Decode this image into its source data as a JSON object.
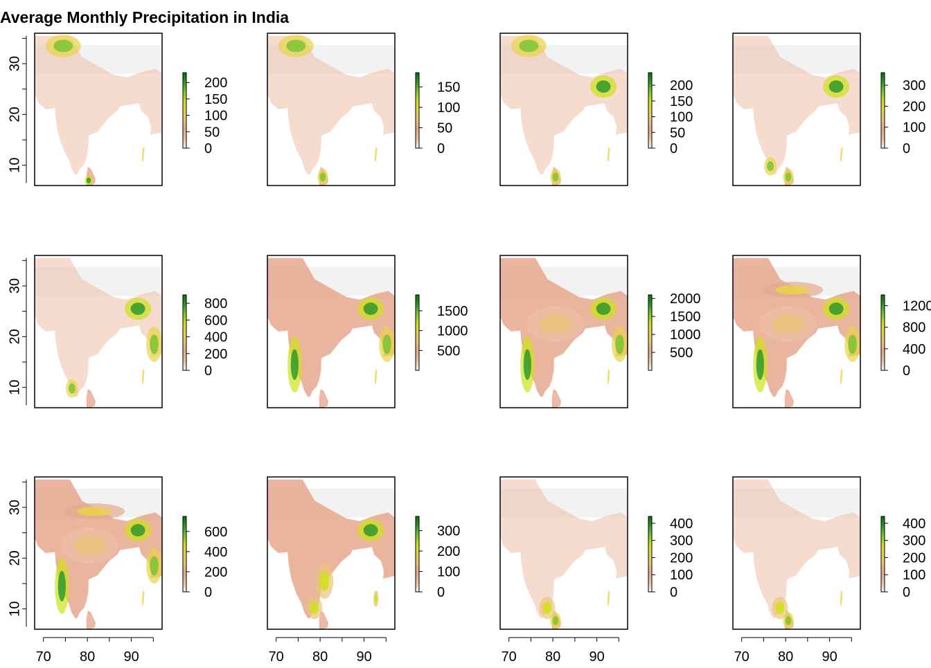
{
  "figure": {
    "title": "Average Monthly Precipitation in India"
  },
  "colors": {
    "background": "#ffffff",
    "na_fill": "#f2f2f2",
    "ramp": [
      "#f2f2f2",
      "#eebfa5",
      "#e6a88e",
      "#ebc47a",
      "#e8d44a",
      "#cfe01a",
      "#7ec42f",
      "#2e9a2a",
      "#0c6e0c"
    ]
  },
  "chart_data": [
    {
      "type": "heatmap",
      "panel": 1,
      "xlim": [
        68,
        97
      ],
      "ylim": [
        6,
        36
      ],
      "x_ticks": [
        70,
        80,
        90
      ],
      "y_ticks": [
        10,
        20,
        30
      ],
      "show_x_axis": false,
      "show_y_axis": true,
      "zlim": [
        0,
        230
      ],
      "legend_ticks": [
        0,
        50,
        100,
        150,
        200
      ],
      "wet_regions": [
        "north-west himalaya",
        "sri lanka south-west"
      ]
    },
    {
      "type": "heatmap",
      "panel": 2,
      "xlim": [
        68,
        97
      ],
      "ylim": [
        6,
        36
      ],
      "x_ticks": [
        70,
        80,
        90
      ],
      "y_ticks": [
        10,
        20,
        30
      ],
      "show_x_axis": false,
      "show_y_axis": false,
      "zlim": [
        0,
        185
      ],
      "legend_ticks": [
        0,
        50,
        100,
        150
      ],
      "wet_regions": [
        "north-west himalaya",
        "sri lanka"
      ]
    },
    {
      "type": "heatmap",
      "panel": 3,
      "xlim": [
        68,
        97
      ],
      "ylim": [
        6,
        36
      ],
      "x_ticks": [
        70,
        80,
        90
      ],
      "y_ticks": [
        10,
        20,
        30
      ],
      "show_x_axis": false,
      "show_y_axis": false,
      "zlim": [
        0,
        240
      ],
      "legend_ticks": [
        0,
        50,
        100,
        150,
        200
      ],
      "wet_regions": [
        "north-west himalaya",
        "north-east",
        "sri lanka"
      ]
    },
    {
      "type": "heatmap",
      "panel": 4,
      "xlim": [
        68,
        97
      ],
      "ylim": [
        6,
        36
      ],
      "x_ticks": [
        70,
        80,
        90
      ],
      "y_ticks": [
        10,
        20,
        30
      ],
      "show_x_axis": false,
      "show_y_axis": false,
      "zlim": [
        0,
        360
      ],
      "legend_ticks": [
        0,
        100,
        200,
        300
      ],
      "wet_regions": [
        "north-east",
        "kerala",
        "sri lanka"
      ]
    },
    {
      "type": "heatmap",
      "panel": 5,
      "xlim": [
        68,
        97
      ],
      "ylim": [
        6,
        36
      ],
      "x_ticks": [
        70,
        80,
        90
      ],
      "y_ticks": [
        10,
        20,
        30
      ],
      "show_x_axis": false,
      "show_y_axis": true,
      "zlim": [
        0,
        900
      ],
      "legend_ticks": [
        0,
        200,
        400,
        600,
        800
      ],
      "wet_regions": [
        "north-east",
        "myanmar coast",
        "kerala"
      ]
    },
    {
      "type": "heatmap",
      "panel": 6,
      "xlim": [
        68,
        97
      ],
      "ylim": [
        6,
        36
      ],
      "x_ticks": [
        70,
        80,
        90
      ],
      "y_ticks": [
        10,
        20,
        30
      ],
      "show_x_axis": false,
      "show_y_axis": false,
      "zlim": [
        0,
        1900
      ],
      "legend_ticks": [
        500,
        1000,
        1500
      ],
      "wet_regions": [
        "western ghats",
        "north-east",
        "myanmar coast"
      ]
    },
    {
      "type": "heatmap",
      "panel": 7,
      "xlim": [
        68,
        97
      ],
      "ylim": [
        6,
        36
      ],
      "x_ticks": [
        70,
        80,
        90
      ],
      "y_ticks": [
        10,
        20,
        30
      ],
      "show_x_axis": false,
      "show_y_axis": false,
      "zlim": [
        0,
        2100
      ],
      "legend_ticks": [
        500,
        1000,
        1500,
        2000
      ],
      "wet_regions": [
        "western ghats",
        "north-east",
        "myanmar coast",
        "central india"
      ]
    },
    {
      "type": "heatmap",
      "panel": 8,
      "xlim": [
        68,
        97
      ],
      "ylim": [
        6,
        36
      ],
      "x_ticks": [
        70,
        80,
        90
      ],
      "y_ticks": [
        10,
        20,
        30
      ],
      "show_x_axis": false,
      "show_y_axis": false,
      "zlim": [
        0,
        1400
      ],
      "legend_ticks": [
        0,
        400,
        800,
        1200
      ],
      "wet_regions": [
        "western ghats",
        "north-east",
        "myanmar coast",
        "central india",
        "himalaya"
      ]
    },
    {
      "type": "heatmap",
      "panel": 9,
      "xlim": [
        68,
        97
      ],
      "ylim": [
        6,
        36
      ],
      "x_ticks": [
        70,
        80,
        90
      ],
      "y_ticks": [
        10,
        20,
        30
      ],
      "show_x_axis": true,
      "show_y_axis": true,
      "zlim": [
        0,
        750
      ],
      "legend_ticks": [
        0,
        200,
        400,
        600
      ],
      "wet_regions": [
        "western ghats",
        "north-east",
        "myanmar coast",
        "central india",
        "himalaya"
      ]
    },
    {
      "type": "heatmap",
      "panel": 10,
      "xlim": [
        68,
        97
      ],
      "ylim": [
        6,
        36
      ],
      "x_ticks": [
        70,
        80,
        90
      ],
      "y_ticks": [
        10,
        20,
        30
      ],
      "show_x_axis": true,
      "show_y_axis": false,
      "zlim": [
        0,
        370
      ],
      "legend_ticks": [
        0,
        100,
        200,
        300
      ],
      "wet_regions": [
        "east coast",
        "tamil nadu",
        "north-east",
        "andaman"
      ]
    },
    {
      "type": "heatmap",
      "panel": 11,
      "xlim": [
        68,
        97
      ],
      "ylim": [
        6,
        36
      ],
      "x_ticks": [
        70,
        80,
        90
      ],
      "y_ticks": [
        10,
        20,
        30
      ],
      "show_x_axis": true,
      "show_y_axis": false,
      "zlim": [
        0,
        440
      ],
      "legend_ticks": [
        0,
        100,
        200,
        300,
        400
      ],
      "wet_regions": [
        "tamil nadu",
        "sri lanka"
      ]
    },
    {
      "type": "heatmap",
      "panel": 12,
      "xlim": [
        68,
        97
      ],
      "ylim": [
        6,
        36
      ],
      "x_ticks": [
        70,
        80,
        90
      ],
      "y_ticks": [
        10,
        20,
        30
      ],
      "show_x_axis": true,
      "show_y_axis": false,
      "zlim": [
        0,
        440
      ],
      "legend_ticks": [
        0,
        100,
        200,
        300,
        400
      ],
      "wet_regions": [
        "sri lanka",
        "tamil nadu"
      ]
    }
  ]
}
